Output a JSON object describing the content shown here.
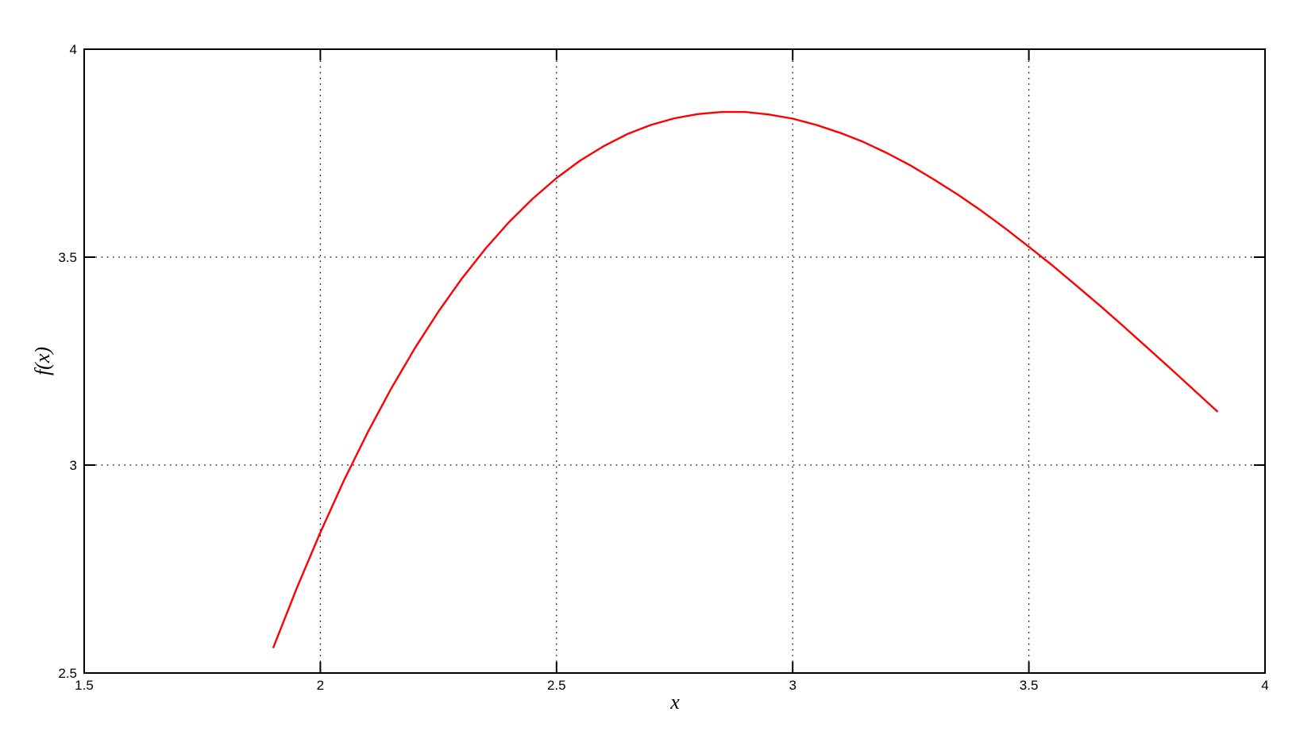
{
  "figure": {
    "background": "#ffffff",
    "frame_color": "#000000",
    "grid_color": "#000000"
  },
  "chart_data": {
    "type": "line",
    "title": "",
    "xlabel": "x",
    "ylabel": "f(x)",
    "xlim": [
      1.5,
      4
    ],
    "ylim": [
      2.5,
      4
    ],
    "x_ticks": [
      {
        "value": 1.5,
        "label": "1.5"
      },
      {
        "value": 2,
        "label": "2"
      },
      {
        "value": 2.5,
        "label": "2.5"
      },
      {
        "value": 3,
        "label": "3"
      },
      {
        "value": 3.5,
        "label": "3.5"
      },
      {
        "value": 4,
        "label": "4"
      }
    ],
    "y_ticks": [
      {
        "value": 2.5,
        "label": "2.5"
      },
      {
        "value": 3,
        "label": "3"
      },
      {
        "value": 3.5,
        "label": "3.5"
      },
      {
        "value": 4,
        "label": "4"
      }
    ],
    "grid": true,
    "grid_style": "dotted",
    "legend": null,
    "series": [
      {
        "name": "f(x)",
        "color": "#ff0000",
        "line_width": 2.4,
        "x_range": [
          1.9,
          3.9
        ],
        "peak": [
          2.87,
          3.85
        ],
        "points": [
          [
            1.9,
            2.56
          ],
          [
            1.95,
            2.704
          ],
          [
            2.0,
            2.838
          ],
          [
            2.05,
            2.963
          ],
          [
            2.1,
            3.078
          ],
          [
            2.15,
            3.184
          ],
          [
            2.2,
            3.281
          ],
          [
            2.25,
            3.369
          ],
          [
            2.3,
            3.449
          ],
          [
            2.35,
            3.521
          ],
          [
            2.4,
            3.585
          ],
          [
            2.45,
            3.641
          ],
          [
            2.5,
            3.69
          ],
          [
            2.55,
            3.732
          ],
          [
            2.6,
            3.767
          ],
          [
            2.65,
            3.796
          ],
          [
            2.7,
            3.818
          ],
          [
            2.75,
            3.834
          ],
          [
            2.8,
            3.844
          ],
          [
            2.85,
            3.849
          ],
          [
            2.9,
            3.849
          ],
          [
            2.95,
            3.843
          ],
          [
            3.0,
            3.833
          ],
          [
            3.05,
            3.818
          ],
          [
            3.1,
            3.799
          ],
          [
            3.15,
            3.777
          ],
          [
            3.2,
            3.75
          ],
          [
            3.25,
            3.72
          ],
          [
            3.3,
            3.686
          ],
          [
            3.35,
            3.65
          ],
          [
            3.4,
            3.611
          ],
          [
            3.45,
            3.569
          ],
          [
            3.5,
            3.525
          ],
          [
            3.55,
            3.48
          ],
          [
            3.6,
            3.432
          ],
          [
            3.65,
            3.384
          ],
          [
            3.7,
            3.334
          ],
          [
            3.75,
            3.283
          ],
          [
            3.8,
            3.232
          ],
          [
            3.85,
            3.18
          ],
          [
            3.9,
            3.128
          ]
        ]
      }
    ]
  }
}
